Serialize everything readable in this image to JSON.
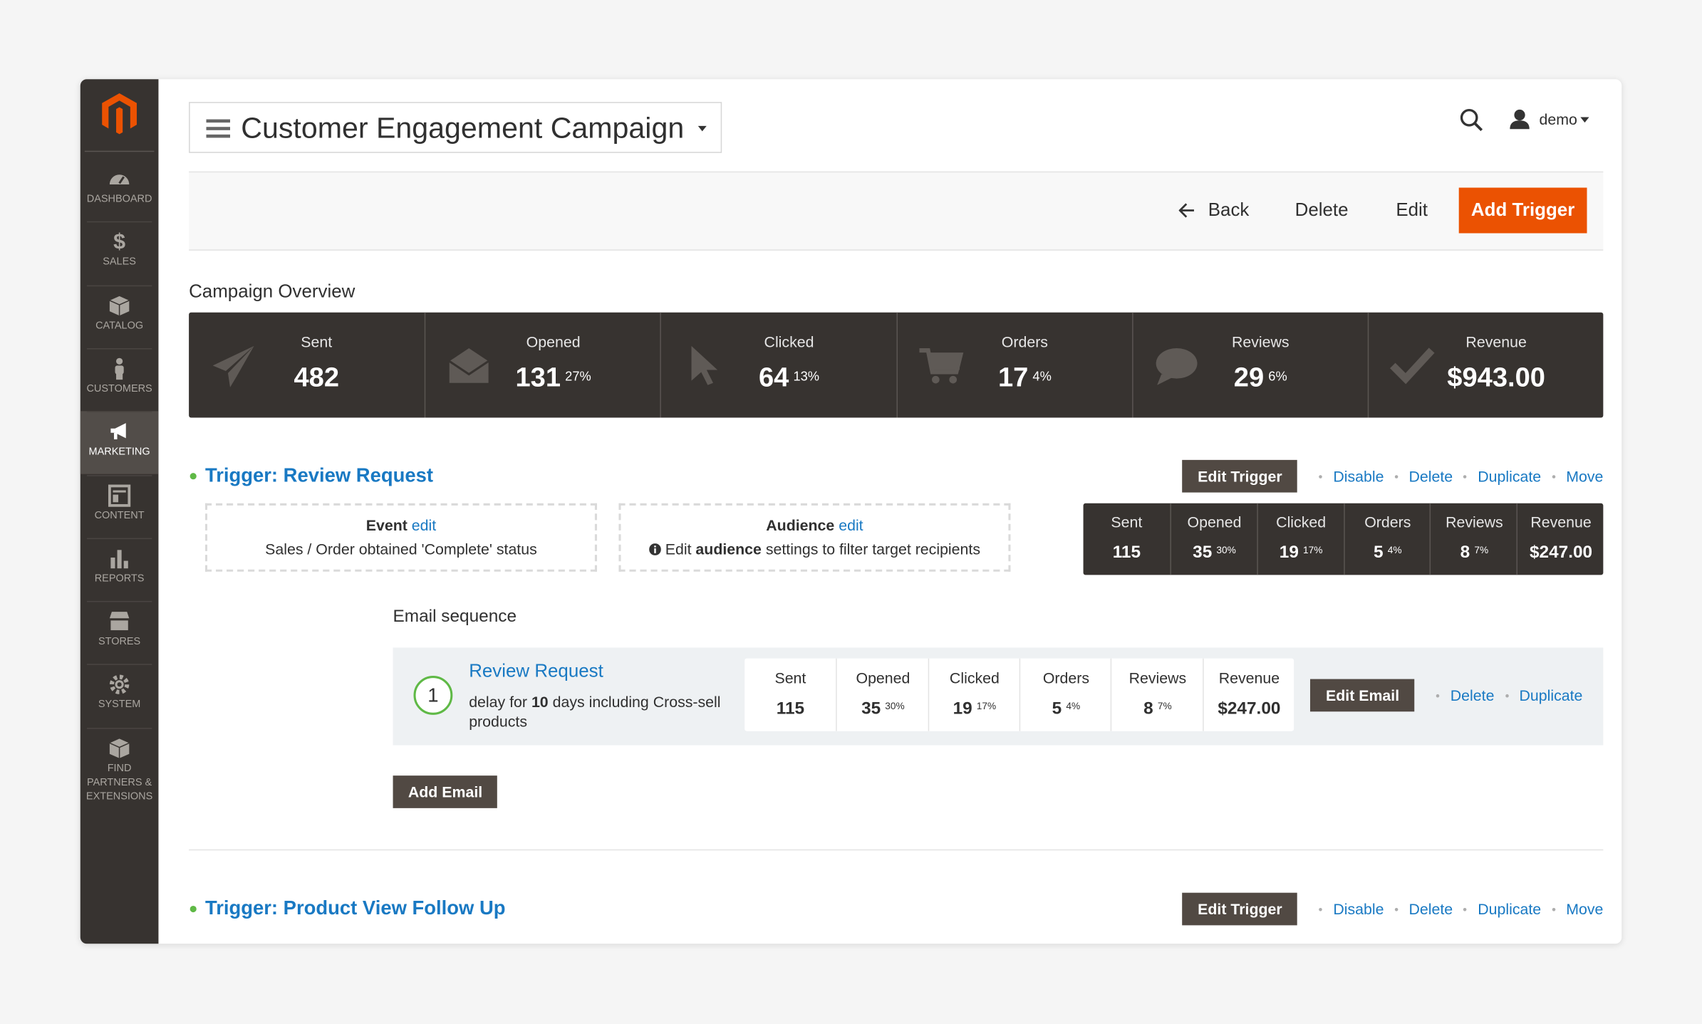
{
  "sidebar": {
    "items": [
      "DASHBOARD",
      "SALES",
      "CATALOG",
      "CUSTOMERS",
      "MARKETING",
      "CONTENT",
      "REPORTS",
      "STORES",
      "SYSTEM",
      "FIND PARTNERS & EXTENSIONS"
    ]
  },
  "header": {
    "title": "Customer Engagement Campaign",
    "user": "demo"
  },
  "actions": [
    "Back",
    "Delete",
    "Edit",
    "Add Trigger"
  ],
  "overview": {
    "title": "Campaign Overview",
    "stats": [
      {
        "label": "Sent",
        "value": "482"
      },
      {
        "label": "Opened",
        "value": "131",
        "percent": "27%"
      },
      {
        "label": "Clicked",
        "value": "64",
        "percent": "13%"
      },
      {
        "label": "Orders",
        "value": "17",
        "percent": "4%"
      },
      {
        "label": "Reviews",
        "value": "29",
        "percent": "6%"
      },
      {
        "label": "Revenue",
        "value": "$943.00"
      }
    ]
  },
  "triggers": [
    {
      "title": "Trigger: Review Request",
      "button": "Edit Trigger",
      "links": [
        "Disable",
        "Delete",
        "Duplicate",
        "Move"
      ],
      "event": {
        "label": "Event",
        "link": "edit",
        "text": "Sales / Order obtained 'Complete' status"
      },
      "audience": {
        "label": "Audience",
        "link": "edit",
        "text_before": "Edit",
        "text_bold": "audience",
        "text_after": "settings to filter target recipients"
      },
      "stats": [
        {
          "label": "Sent",
          "value": "115"
        },
        {
          "label": "Opened",
          "value": "35",
          "percent": "30%"
        },
        {
          "label": "Clicked",
          "value": "19",
          "percent": "17%"
        },
        {
          "label": "Orders",
          "value": "5",
          "percent": "4%"
        },
        {
          "label": "Reviews",
          "value": "8",
          "percent": "7%"
        },
        {
          "label": "Revenue",
          "value": "$247.00"
        }
      ],
      "sequence_title": "Email sequence",
      "emails": [
        {
          "number": "1",
          "title": "Review Request",
          "delay_before": "delay for",
          "delay_bold": "10",
          "delay_after": "days including Cross-sell products",
          "stats": [
            {
              "label": "Sent",
              "value": "115"
            },
            {
              "label": "Opened",
              "value": "35",
              "percent": "30%"
            },
            {
              "label": "Clicked",
              "value": "19",
              "percent": "17%"
            },
            {
              "label": "Orders",
              "value": "5",
              "percent": "4%"
            },
            {
              "label": "Reviews",
              "value": "8",
              "percent": "7%"
            },
            {
              "label": "Revenue",
              "value": "$247.00"
            }
          ],
          "button": "Edit Email",
          "links": [
            "Delete",
            "Duplicate"
          ]
        }
      ],
      "add_email": "Add Email"
    },
    {
      "title": "Trigger: Product View Follow Up",
      "button": "Edit Trigger",
      "links": [
        "Disable",
        "Delete",
        "Duplicate",
        "Move"
      ]
    }
  ]
}
